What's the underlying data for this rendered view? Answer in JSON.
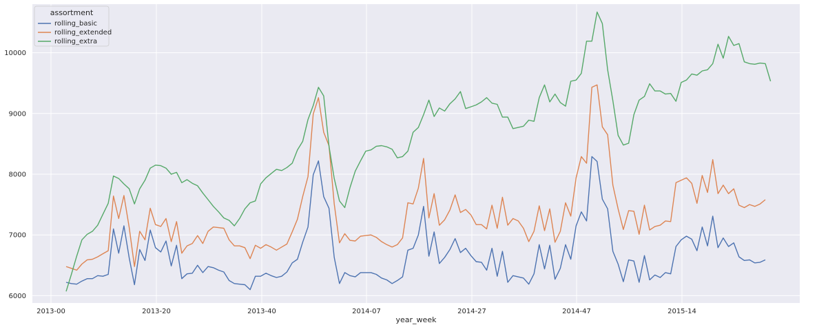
{
  "chart_data": {
    "type": "line",
    "xlabel": "year_week",
    "ylabel": "",
    "x_tick_labels": [
      "2013-00",
      "2013-20",
      "2013-40",
      "2014-07",
      "2014-27",
      "2014-47",
      "2015-14"
    ],
    "y_ticks": [
      6000,
      7000,
      8000,
      9000,
      10000
    ],
    "ylim": [
      5880,
      10800
    ],
    "grid": true,
    "legend": {
      "title": "assortment",
      "position": "top-left",
      "entries": [
        "rolling_basic",
        "rolling_extended",
        "rolling_extra"
      ]
    },
    "series": [
      {
        "name": "rolling_basic",
        "color": "#4c72b0",
        "values": [
          6220,
          6200,
          6190,
          6240,
          6280,
          6280,
          6330,
          6320,
          6350,
          7100,
          6700,
          7150,
          6620,
          6180,
          6760,
          6580,
          7080,
          6790,
          6720,
          6900,
          6490,
          6830,
          6280,
          6360,
          6370,
          6500,
          6380,
          6480,
          6460,
          6420,
          6390,
          6250,
          6200,
          6190,
          6180,
          6100,
          6320,
          6320,
          6370,
          6330,
          6300,
          6320,
          6390,
          6540,
          6600,
          6880,
          7130,
          7990,
          8220,
          7630,
          7440,
          6630,
          6200,
          6380,
          6330,
          6310,
          6380,
          6380,
          6380,
          6350,
          6290,
          6260,
          6200,
          6250,
          6310,
          6750,
          6780,
          7000,
          7470,
          6650,
          7050,
          6530,
          6630,
          6760,
          6940,
          6710,
          6780,
          6660,
          6560,
          6550,
          6420,
          6780,
          6320,
          6730,
          6220,
          6330,
          6310,
          6290,
          6190,
          6360,
          6840,
          6440,
          6830,
          6270,
          6450,
          6840,
          6600,
          7150,
          7380,
          7230,
          8290,
          8210,
          7590,
          7430,
          6730,
          6520,
          6230,
          6590,
          6570,
          6220,
          6660,
          6260,
          6340,
          6300,
          6380,
          6360,
          6810,
          6920,
          6980,
          6930,
          6740,
          7130,
          6820,
          7310,
          6790,
          6950,
          6810,
          6870,
          6640,
          6580,
          6590,
          6540,
          6550,
          6590
        ]
      },
      {
        "name": "rolling_extended",
        "color": "#dd8452",
        "values": [
          6480,
          6450,
          6420,
          6520,
          6590,
          6600,
          6640,
          6690,
          6740,
          7640,
          7270,
          7650,
          7120,
          6480,
          7060,
          6920,
          7440,
          7170,
          7140,
          7270,
          6890,
          7220,
          6700,
          6820,
          6860,
          6990,
          6860,
          7060,
          7130,
          7120,
          7110,
          6920,
          6820,
          6820,
          6790,
          6610,
          6830,
          6780,
          6840,
          6800,
          6750,
          6800,
          6850,
          7050,
          7260,
          7630,
          7960,
          8990,
          9260,
          8690,
          8470,
          7510,
          6870,
          7020,
          6910,
          6900,
          6980,
          6990,
          7000,
          6960,
          6890,
          6840,
          6800,
          6840,
          6950,
          7530,
          7510,
          7770,
          8260,
          7280,
          7680,
          7160,
          7250,
          7410,
          7660,
          7370,
          7420,
          7330,
          7170,
          7170,
          7100,
          7490,
          7110,
          7620,
          7160,
          7270,
          7230,
          7110,
          6890,
          7060,
          7480,
          7070,
          7430,
          6880,
          7060,
          7530,
          7310,
          7940,
          8290,
          8180,
          9430,
          9470,
          8780,
          8650,
          7820,
          7430,
          7090,
          7400,
          7390,
          7010,
          7490,
          7080,
          7140,
          7160,
          7230,
          7220,
          7860,
          7900,
          7940,
          7850,
          7520,
          7980,
          7700,
          8240,
          7680,
          7820,
          7680,
          7760,
          7490,
          7450,
          7500,
          7470,
          7510,
          7580
        ]
      },
      {
        "name": "rolling_extra",
        "color": "#55a868",
        "values": [
          6070,
          6350,
          6650,
          6920,
          7010,
          7060,
          7160,
          7340,
          7520,
          7970,
          7930,
          7840,
          7760,
          7510,
          7760,
          7900,
          8100,
          8150,
          8140,
          8100,
          8000,
          8030,
          7860,
          7910,
          7850,
          7810,
          7690,
          7580,
          7470,
          7380,
          7280,
          7240,
          7150,
          7270,
          7430,
          7530,
          7560,
          7840,
          7940,
          8010,
          8080,
          8060,
          8110,
          8180,
          8400,
          8540,
          8900,
          9130,
          9430,
          9290,
          8460,
          7930,
          7560,
          7450,
          7780,
          8050,
          8220,
          8380,
          8400,
          8460,
          8470,
          8450,
          8410,
          8270,
          8290,
          8380,
          8690,
          8770,
          8980,
          9220,
          8950,
          9090,
          9040,
          9160,
          9240,
          9360,
          9080,
          9110,
          9140,
          9190,
          9260,
          9170,
          9150,
          8940,
          8940,
          8750,
          8770,
          8790,
          8890,
          8870,
          9260,
          9470,
          9190,
          9320,
          9180,
          9120,
          9530,
          9550,
          9660,
          10190,
          10190,
          10670,
          10480,
          9720,
          9210,
          8640,
          8480,
          8510,
          8980,
          9220,
          9280,
          9490,
          9370,
          9370,
          9320,
          9330,
          9200,
          9510,
          9550,
          9650,
          9630,
          9700,
          9720,
          9820,
          10140,
          9910,
          10270,
          10120,
          10150,
          9850,
          9820,
          9810,
          9830,
          9820,
          9530
        ]
      }
    ]
  }
}
